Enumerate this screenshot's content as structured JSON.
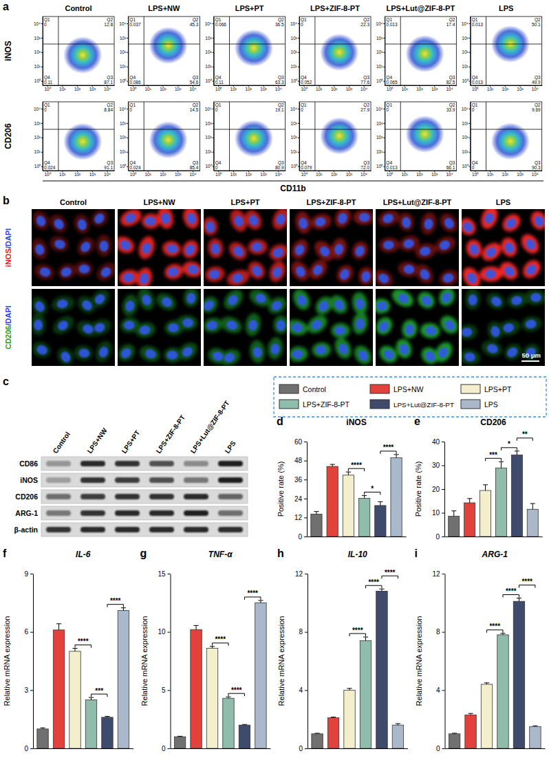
{
  "groups": [
    "Control",
    "LPS+NW",
    "LPS+PT",
    "LPS+ZIF-8-PT",
    "LPS+Lut@ZIF-8-PT",
    "LPS"
  ],
  "group_colors": [
    "#707070",
    "#e3413b",
    "#f3eecb",
    "#8fbcab",
    "#3e4b6c",
    "#aab8cc"
  ],
  "flow": {
    "panel": "a",
    "x_label": "CD11b",
    "quadrants": [
      "Q1",
      "Q2",
      "Q3",
      "Q4"
    ],
    "log": true,
    "lim": [
      0.5,
      30000
    ],
    "ticks": [
      {
        "value": 1,
        "label": "10⁰"
      },
      {
        "value": 10,
        "label": "10¹"
      },
      {
        "value": 100,
        "label": "10²"
      },
      {
        "value": 1000,
        "label": "10³"
      },
      {
        "value": 10000,
        "label": "10⁴"
      }
    ],
    "rows": [
      {
        "label": "iNOS",
        "plots": [
          [
            0,
            12.8,
            87.1,
            0.11
          ],
          [
            0.037,
            45.3,
            54.6,
            0.086
          ],
          [
            0.066,
            36.5,
            63.3,
            0.11
          ],
          [
            0,
            22.3,
            77.6,
            0.052
          ],
          [
            0.013,
            17.4,
            82.5,
            0.065
          ],
          [
            0.013,
            50.1,
            49.9,
            0.013
          ]
        ]
      },
      {
        "label": "CD206",
        "plots": [
          [
            0,
            8.84,
            91.1,
            0.024
          ],
          [
            0,
            14.5,
            85.4,
            0.024
          ],
          [
            0,
            19.1,
            80.9,
            0
          ],
          [
            0,
            27.9,
            {
              "value": 72,
              "label": "72.0"
            },
            0.079
          ],
          [
            0,
            33.9,
            66.1,
            0.013
          ],
          [
            0,
            9.69,
            90.3,
            0
          ]
        ]
      }
    ]
  },
  "microscopy": {
    "panel": "b",
    "rows": [
      {
        "label": [
          "iNOS",
          "/DAPI"
        ]
      },
      {
        "label": [
          "CD206",
          "/DAPI"
        ]
      }
    ],
    "scale_bar": "50 μm"
  },
  "blot": {
    "panel": "c",
    "rows": [
      "CD86",
      "iNOS",
      "CD206",
      "ARG-1",
      "β-actin"
    ],
    "intensity": [
      [
        0.35,
        0.9,
        0.85,
        0.7,
        0.4,
        0.95
      ],
      [
        0.3,
        0.85,
        0.8,
        0.7,
        0.5,
        0.95
      ],
      [
        0.55,
        0.8,
        0.85,
        0.85,
        0.9,
        0.6
      ],
      [
        0.5,
        0.85,
        0.9,
        0.9,
        0.95,
        0.55
      ],
      [
        0.85,
        0.9,
        0.9,
        0.9,
        0.9,
        0.88
      ]
    ]
  },
  "chart_data": [
    {
      "panel": "d",
      "type": "bar",
      "title": "iNOS",
      "y_label": "Positive rate (%)",
      "categories": [
        null,
        null,
        null,
        null,
        null,
        null
      ],
      "values": [
        14.2,
        44.3,
        38.8,
        24.1,
        19.6,
        49.8
      ],
      "errors": [
        1.6,
        1.3,
        2.0,
        1.8,
        2.4,
        2.0
      ],
      "colors": [
        "#707070",
        "#e3413b",
        "#f3eecb",
        "#8fbcab",
        "#3e4b6c",
        "#aab8cc"
      ],
      "ylim": [
        0,
        60
      ],
      "yticks": [
        0,
        12,
        24,
        36,
        48,
        60
      ],
      "significance": [
        {
          "between": [
            2,
            3
          ],
          "label": "****"
        },
        {
          "between": [
            3,
            4
          ],
          "label": "*"
        },
        {
          "between": [
            4,
            5
          ],
          "label": "****"
        }
      ]
    },
    {
      "panel": "e",
      "type": "bar",
      "title": "CD206",
      "y_label": "Positive rate (%)",
      "categories": [
        null,
        null,
        null,
        null,
        null,
        null
      ],
      "values": [
        8.6,
        14.2,
        19.4,
        28.9,
        34.4,
        11.5
      ],
      "errors": [
        2.2,
        1.8,
        2.4,
        2.6,
        1.6,
        2.4
      ],
      "colors": [
        "#707070",
        "#e3413b",
        "#f3eecb",
        "#8fbcab",
        "#3e4b6c",
        "#aab8cc"
      ],
      "ylim": [
        0,
        40
      ],
      "yticks": [
        0,
        10,
        20,
        30,
        40
      ],
      "significance": [
        {
          "between": [
            2,
            3
          ],
          "label": "***"
        },
        {
          "between": [
            3,
            4
          ],
          "label": "*"
        },
        {
          "between": [
            4,
            5
          ],
          "label": "**"
        }
      ]
    },
    {
      "panel": "f",
      "type": "bar",
      "title": "IL-6",
      "y_label": "Relative mRNA expression",
      "categories": [
        null,
        null,
        null,
        null,
        null,
        null
      ],
      "values": [
        1.0,
        6.1,
        5.0,
        2.5,
        1.6,
        7.1
      ],
      "errors": [
        0.06,
        0.32,
        0.15,
        0.12,
        0.05,
        0.14
      ],
      "colors": [
        "#707070",
        "#e3413b",
        "#f3eecb",
        "#8fbcab",
        "#3e4b6c",
        "#aab8cc"
      ],
      "ylim": [
        0,
        9
      ],
      "yticks": [
        0,
        3,
        6,
        9
      ],
      "significance": [
        {
          "between": [
            2,
            3
          ],
          "label": "****"
        },
        {
          "between": [
            3,
            4
          ],
          "label": "***"
        },
        {
          "between": [
            4,
            5
          ],
          "label": "****"
        }
      ]
    },
    {
      "panel": "g",
      "type": "bar",
      "title": "TNF-α",
      "y_label": "Relative mRNA expression",
      "categories": [
        null,
        null,
        null,
        null,
        null,
        null
      ],
      "values": [
        1.0,
        10.2,
        8.6,
        4.3,
        2.0,
        12.5
      ],
      "errors": [
        0.04,
        0.35,
        0.15,
        0.12,
        0.05,
        0.2
      ],
      "colors": [
        "#707070",
        "#e3413b",
        "#f3eecb",
        "#8fbcab",
        "#3e4b6c",
        "#aab8cc"
      ],
      "ylim": [
        0,
        15
      ],
      "yticks": [
        0,
        5,
        10,
        15
      ],
      "significance": [
        {
          "between": [
            2,
            3
          ],
          "label": "****"
        },
        {
          "between": [
            3,
            4
          ],
          "label": "****"
        },
        {
          "between": [
            4,
            5
          ],
          "label": "****"
        }
      ]
    },
    {
      "panel": "h",
      "type": "bar",
      "title": "IL-10",
      "y_label": "Relative mRNA expression",
      "categories": [
        null,
        null,
        null,
        null,
        null,
        null
      ],
      "values": [
        1.0,
        2.1,
        4.0,
        7.4,
        10.8,
        1.6
      ],
      "errors": [
        0.04,
        0.05,
        0.12,
        0.25,
        0.15,
        0.1
      ],
      "colors": [
        "#707070",
        "#e3413b",
        "#f3eecb",
        "#8fbcab",
        "#3e4b6c",
        "#aab8cc"
      ],
      "ylim": [
        0,
        12
      ],
      "yticks": [
        0,
        4,
        8,
        12
      ],
      "significance": [
        {
          "between": [
            2,
            3
          ],
          "label": "****"
        },
        {
          "between": [
            3,
            4
          ],
          "label": "****"
        },
        {
          "between": [
            4,
            5
          ],
          "label": "****"
        }
      ]
    },
    {
      "panel": "i",
      "type": "bar",
      "title": "ARG-1",
      "y_label": "Relative mRNA expression",
      "categories": [
        null,
        null,
        null,
        null,
        null,
        null
      ],
      "values": [
        1.0,
        2.3,
        4.4,
        7.8,
        10.1,
        1.5
      ],
      "errors": [
        0.04,
        0.1,
        0.1,
        0.1,
        0.22,
        0.05
      ],
      "colors": [
        "#707070",
        "#e3413b",
        "#f3eecb",
        "#8fbcab",
        "#3e4b6c",
        "#aab8cc"
      ],
      "ylim": [
        0,
        12
      ],
      "yticks": [
        0,
        4,
        8,
        12
      ],
      "significance": [
        {
          "between": [
            2,
            3
          ],
          "label": "****"
        },
        {
          "between": [
            3,
            4
          ],
          "label": "****"
        },
        {
          "between": [
            4,
            5
          ],
          "label": "****"
        }
      ]
    }
  ]
}
